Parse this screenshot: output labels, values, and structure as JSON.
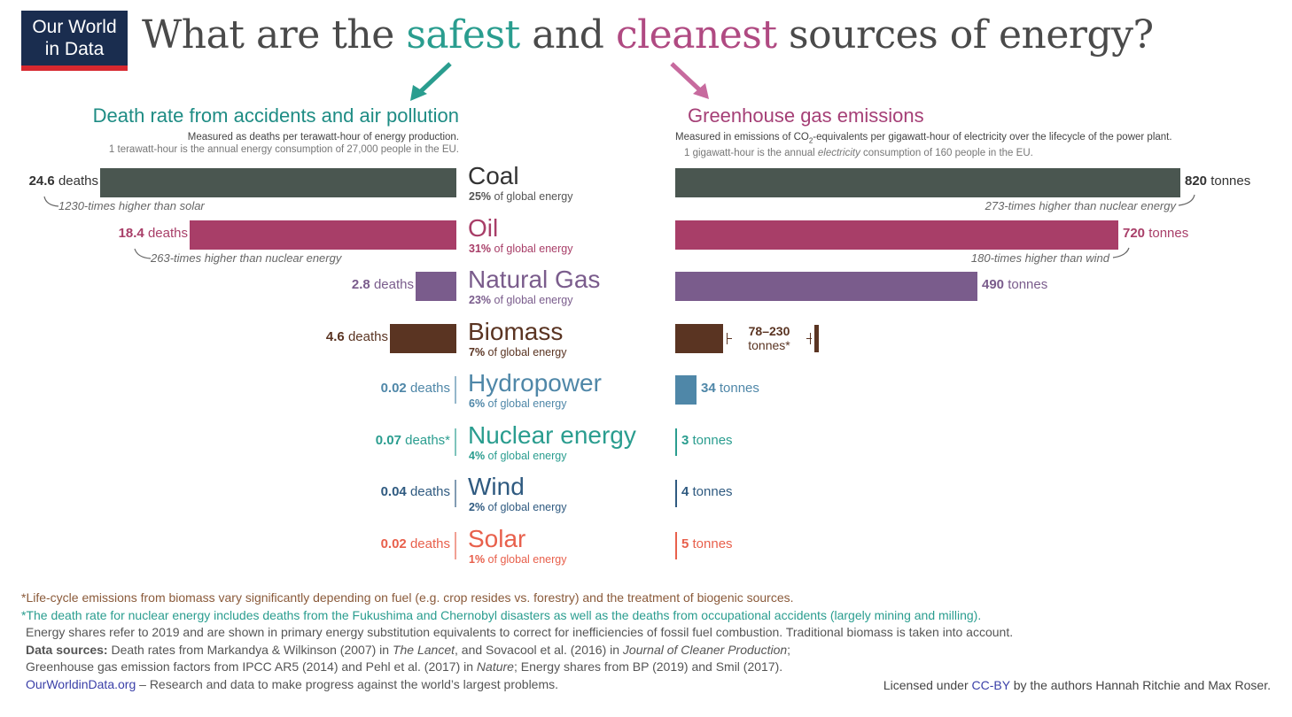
{
  "logo": {
    "line1": "Our World",
    "line2": "in Data"
  },
  "title": {
    "part1": "What are the ",
    "safest": "safest",
    "part2": " and ",
    "cleanest": "cleanest",
    "part3": " sources of energy?"
  },
  "left_panel": {
    "title": "Death rate from accidents and air pollution",
    "subtitle": "Measured as deaths per terawatt-hour of energy production.",
    "subtitle2": "1 terawatt-hour is the annual energy consumption of 27,000 people in the EU."
  },
  "right_panel": {
    "title": "Greenhouse gas emissions",
    "subtitle_pre": "Measured in emissions of CO",
    "subtitle_sub": "2",
    "subtitle_post": "-equivalents per gigawatt-hour of electricity over the lifecycle of the power plant.",
    "subtitle2_pre": "1 gigawatt-hour is the annual ",
    "subtitle2_em": "electricity",
    "subtitle2_post": " consumption of 160 people in the EU."
  },
  "colors": {
    "coal": "#4a5650",
    "oil": "#a83e68",
    "gas": "#7a5c8c",
    "biomass": "#5a3422",
    "hydro": "#4f87a8",
    "nuclear": "#2a9d8f",
    "wind": "#2f5a80",
    "solar": "#e8604c"
  },
  "chart_data": {
    "type": "bar",
    "categories": [
      "Coal",
      "Oil",
      "Natural Gas",
      "Biomass",
      "Hydropower",
      "Nuclear energy",
      "Wind",
      "Solar"
    ],
    "series": [
      {
        "name": "Death rate from accidents and air pollution",
        "values": [
          24.6,
          18.4,
          2.8,
          4.6,
          0.02,
          0.07,
          0.04,
          0.02
        ]
      },
      {
        "name": "Greenhouse gas emissions",
        "values": [
          820,
          720,
          490,
          230,
          34,
          3,
          4,
          5
        ]
      }
    ],
    "biomass_emissions_range": [
      78,
      230
    ],
    "shares": [
      "25%",
      "31%",
      "23%",
      "7%",
      "6%",
      "4%",
      "2%",
      "1%"
    ],
    "death_labels": [
      {
        "num": "24.6",
        "unit": " deaths"
      },
      {
        "num": "18.4",
        "unit": " deaths"
      },
      {
        "num": "2.8",
        "unit": " deaths"
      },
      {
        "num": "4.6",
        "unit": " deaths"
      },
      {
        "num": "0.02",
        "unit": " deaths"
      },
      {
        "num": "0.07",
        "unit": " deaths*"
      },
      {
        "num": "0.04",
        "unit": " deaths"
      },
      {
        "num": "0.02",
        "unit": " deaths"
      }
    ],
    "emission_labels": [
      {
        "num": "820",
        "unit": " tonnes"
      },
      {
        "num": "720",
        "unit": " tonnes"
      },
      {
        "num": "490",
        "unit": " tonnes"
      },
      {
        "num": "78–230",
        "unit": "tonnes*"
      },
      {
        "num": "34",
        "unit": " tonnes"
      },
      {
        "num": "3",
        "unit": " tonnes"
      },
      {
        "num": "4",
        "unit": " tonnes"
      },
      {
        "num": "5",
        "unit": " tonnes"
      }
    ],
    "share_suffix": " of global energy",
    "annotations": {
      "coal_death": "1230-times higher than solar",
      "oil_death": "263-times higher than nuclear energy",
      "coal_emission": "273-times higher than nuclear energy",
      "oil_emission": "180-times higher than wind"
    }
  },
  "footer": {
    "note1": "*Life-cycle emissions from biomass vary significantly depending on fuel (e.g. crop resides vs. forestry) and the treatment of biogenic sources.",
    "note2": "*The death rate for nuclear energy includes deaths from the Fukushima and Chernobyl disasters as well as the deaths from occupational accidents (largely mining and milling).",
    "note3": "Energy shares refer to 2019 and are shown in primary energy substitution equivalents to correct for inefficiencies of fossil fuel combustion. Traditional biomass is taken into account.",
    "sources_label": "Data sources:",
    "sources_a": " Death rates from Markandya & Wilkinson (2007) in ",
    "sources_lancet": "The Lancet",
    "sources_b": ", and Sovacool et al. (2016) in ",
    "sources_jcp": "Journal of Cleaner Production",
    "sources_c": ";",
    "sources_line2_a": "Greenhouse gas emission factors from IPCC AR5 (2014) and Pehl et al. (2017) in ",
    "sources_nature": "Nature",
    "sources_line2_b": "; Energy shares from BP (2019) and Smil (2017).",
    "site": "OurWorldinData.org",
    "tagline": " – Research and data to make progress against the world’s largest problems.",
    "license_pre": "Licensed under ",
    "license_link": "CC-BY",
    "license_post": " by the authors Hannah Ritchie and Max Roser."
  }
}
